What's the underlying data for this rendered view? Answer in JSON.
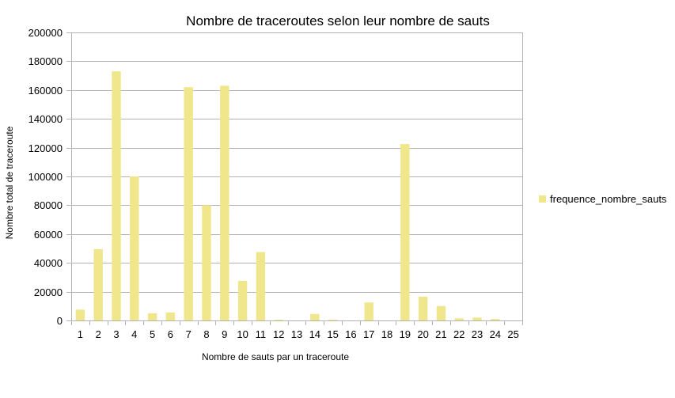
{
  "chart_data": {
    "type": "bar",
    "title": "Nombre  de traceroutes selon  leur nombre de sauts",
    "xlabel": "Nombre de sauts par un traceroute",
    "ylabel": "Nombre total de traceroute",
    "ylim": [
      0,
      200000
    ],
    "yticks": [
      0,
      20000,
      40000,
      60000,
      80000,
      100000,
      120000,
      140000,
      160000,
      180000,
      200000
    ],
    "grid": true,
    "legend_position": "right",
    "categories": [
      "1",
      "2",
      "3",
      "4",
      "5",
      "6",
      "7",
      "8",
      "9",
      "10",
      "11",
      "12",
      "13",
      "14",
      "15",
      "16",
      "17",
      "18",
      "19",
      "20",
      "21",
      "22",
      "23",
      "24",
      "25"
    ],
    "series": [
      {
        "name": "frequence_nombre_sauts",
        "color": "#f0e68c",
        "values": [
          7500,
          49500,
          173000,
          100000,
          5000,
          5500,
          162000,
          80000,
          163000,
          27500,
          47500,
          500,
          0,
          4500,
          500,
          0,
          12500,
          0,
          122500,
          16500,
          10000,
          1500,
          2000,
          1000,
          0
        ]
      }
    ]
  }
}
